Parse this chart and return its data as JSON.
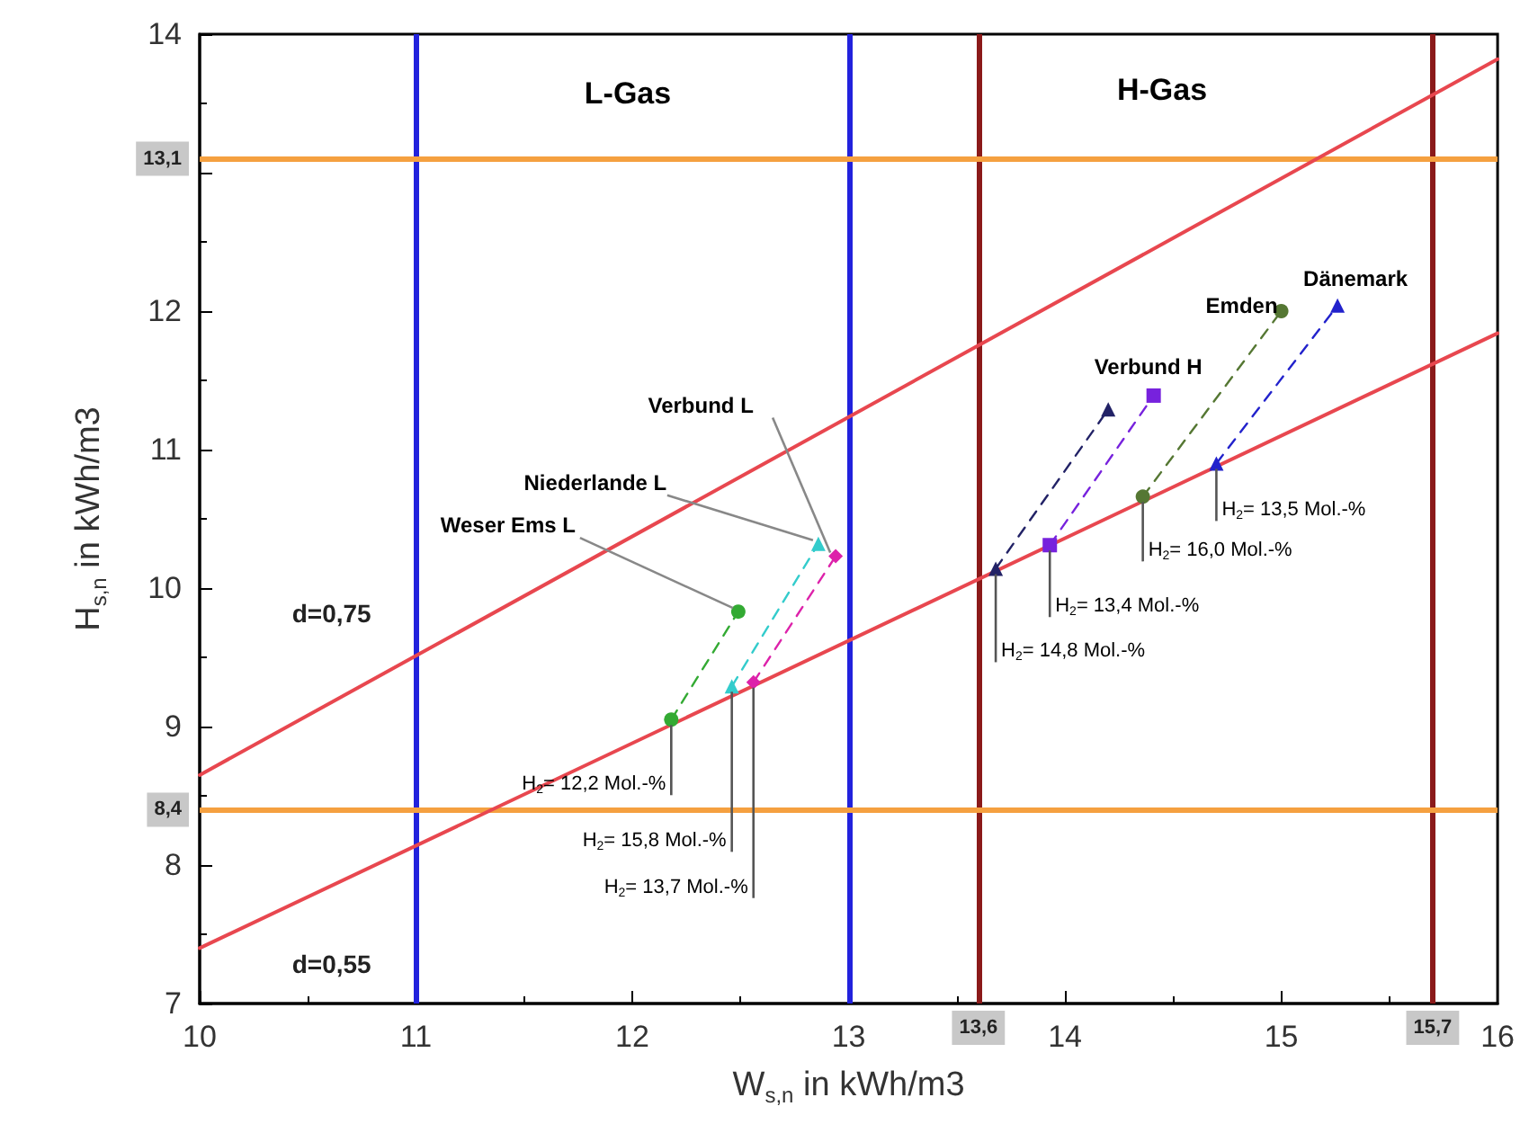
{
  "chart_data": {
    "type": "line",
    "xlabel": "W$_{s,n}$ in kWh/m3",
    "ylabel": "H$_{s,n}$ in kWh/m3",
    "xlim": [
      10,
      16
    ],
    "xticks": [
      10,
      11,
      12,
      13,
      14,
      15,
      16
    ],
    "ylim": [
      7,
      14
    ],
    "yticks": [
      7,
      8,
      9,
      10,
      11,
      12,
      {
        "value": 13,
        "label": null
      },
      14
    ],
    "grid": false,
    "legend": false,
    "series": [
      {
        "name": "d=0,75",
        "color": "#e8474f",
        "marker": "none",
        "line_style": "solid",
        "x": [
          10,
          16
        ],
        "values": [
          8.65,
          13.82
        ]
      },
      {
        "name": "d=0,55",
        "color": "#e8474f",
        "marker": "none",
        "line_style": "solid",
        "x": [
          10,
          16
        ],
        "values": [
          7.4,
          11.84
        ]
      },
      {
        "color": "#33aa33",
        "marker": "circle",
        "line_style": "dashed",
        "x": [
          12.18,
          12.49
        ],
        "values": [
          9.05,
          9.83
        ]
      },
      {
        "color": "#33cccc",
        "marker": "triangle",
        "line_style": "dashed",
        "x": [
          12.46,
          12.86
        ],
        "values": [
          9.29,
          10.32
        ]
      },
      {
        "color": "#dd22aa",
        "marker": "diamond",
        "line_style": "dashed",
        "x": [
          12.56,
          12.94
        ],
        "values": [
          9.32,
          10.23
        ]
      },
      {
        "color": "#222266",
        "marker": "triangle",
        "line_style": "dashed",
        "x": [
          13.68,
          14.2
        ],
        "values": [
          10.14,
          11.29
        ]
      },
      {
        "color": "#7722dd",
        "marker": "square",
        "line_style": "dashed",
        "x": [
          13.93,
          14.41
        ],
        "values": [
          10.31,
          11.39
        ]
      },
      {
        "color": "#557733",
        "marker": "circle",
        "line_style": "dashed",
        "x": [
          14.36,
          15.0
        ],
        "values": [
          10.66,
          12.0
        ]
      },
      {
        "color": "#2222cc",
        "marker": "triangle",
        "line_style": "dashed",
        "x": [
          14.7,
          15.26
        ],
        "values": [
          10.9,
          12.04
        ]
      }
    ],
    "ref_lines": [
      {
        "axis": "x",
        "value": 11,
        "color": "#2222dd"
      },
      {
        "axis": "x",
        "value": 13,
        "color": "#2222dd"
      },
      {
        "axis": "x",
        "value": 13.6,
        "label": "13,6",
        "color": "#8b1a1a"
      },
      {
        "axis": "x",
        "value": 15.7,
        "label": "15,7",
        "color": "#8b1a1a"
      },
      {
        "axis": "y",
        "value": 13.1,
        "label": "13,1",
        "color": "#f5a040"
      },
      {
        "axis": "y",
        "value": 8.4,
        "label": "8,4",
        "color": "#f5a040"
      }
    ],
    "annotations": [
      "L-Gas",
      "H-Gas",
      {
        "text": "Weser Ems L",
        "x": 12.49,
        "y": 9.83
      },
      {
        "text": "Niederlande L",
        "x": 12.86,
        "y": 10.32
      },
      {
        "text": "Verbund L",
        "x": 12.94,
        "y": 10.23
      },
      {
        "text": "Verbund H",
        "x": 14.41,
        "y": 11.39
      },
      {
        "text": "Emden",
        "x": 15.0,
        "y": 12.0
      },
      {
        "text": "Dänemark",
        "x": 15.26,
        "y": 12.04
      },
      {
        "text": "H$_{2}$= 12,2 Mol.-%",
        "x": 12.18,
        "y": 9.05
      },
      {
        "text": "H$_{2}$= 15,8 Mol.-%",
        "x": 12.46,
        "y": 9.29
      },
      {
        "text": "H$_{2}$= 13,7 Mol.-%",
        "x": 12.56,
        "y": 9.32
      },
      {
        "text": "H$_{2}$= 14,8 Mol.-%",
        "x": 13.68,
        "y": 10.14
      },
      {
        "text": "H$_{2}$= 13,4 Mol.-%",
        "x": 13.93,
        "y": 10.31
      },
      {
        "text": "H$_{2}$= 16,0 Mol.-%",
        "x": 14.36,
        "y": 10.66
      },
      {
        "text": "H$_{2}$= 13,5 Mol.-%",
        "x": 14.7,
        "y": 10.9
      }
    ]
  }
}
